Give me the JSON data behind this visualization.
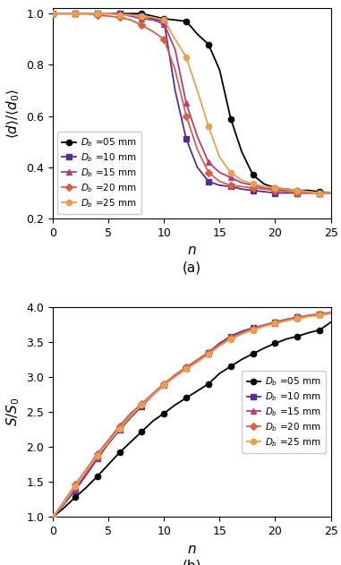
{
  "colors": {
    "05mm": "#000000",
    "10mm": "#5b2d8e",
    "15mm": "#b0407a",
    "20mm": "#d4604a",
    "25mm": "#e8a050"
  },
  "markers": {
    "05mm": "o",
    "10mm": "s",
    "15mm": "^",
    "20mm": "D",
    "25mm": "o"
  },
  "legend_labels": {
    "05mm": "$D_b$ =05 mm",
    "10mm": "$D_b$ =10 mm",
    "15mm": "$D_b$ =15 mm",
    "20mm": "$D_b$ =20 mm",
    "25mm": "$D_b$ =25 mm"
  },
  "plot_a": {
    "n_values": [
      0,
      1,
      2,
      3,
      4,
      5,
      6,
      7,
      8,
      9,
      10,
      11,
      12,
      13,
      14,
      15,
      16,
      17,
      18,
      19,
      20,
      21,
      22,
      23,
      24,
      25
    ],
    "05mm": [
      1.0,
      1.0,
      1.0,
      1.0,
      1.0,
      1.0,
      1.0,
      1.0,
      1.0,
      0.99,
      0.98,
      0.975,
      0.97,
      0.92,
      0.88,
      0.78,
      0.59,
      0.46,
      0.37,
      0.335,
      0.32,
      0.315,
      0.31,
      0.31,
      0.305,
      0.3
    ],
    "10mm": [
      1.0,
      1.0,
      1.0,
      1.0,
      1.0,
      1.0,
      1.0,
      0.995,
      0.99,
      0.98,
      0.97,
      0.7,
      0.51,
      0.4,
      0.345,
      0.33,
      0.325,
      0.315,
      0.31,
      0.305,
      0.3,
      0.3,
      0.3,
      0.3,
      0.3,
      0.3
    ],
    "15mm": [
      1.0,
      1.0,
      1.0,
      1.0,
      1.0,
      1.0,
      1.0,
      0.99,
      0.98,
      0.975,
      0.96,
      0.86,
      0.65,
      0.52,
      0.42,
      0.38,
      0.36,
      0.34,
      0.33,
      0.32,
      0.315,
      0.31,
      0.31,
      0.305,
      0.3,
      0.3
    ],
    "20mm": [
      1.0,
      1.0,
      1.0,
      1.0,
      0.995,
      0.99,
      0.985,
      0.975,
      0.955,
      0.93,
      0.9,
      0.78,
      0.6,
      0.47,
      0.38,
      0.345,
      0.33,
      0.325,
      0.32,
      0.315,
      0.31,
      0.305,
      0.3,
      0.3,
      0.3,
      0.3
    ],
    "25mm": [
      1.0,
      1.0,
      1.0,
      1.0,
      1.0,
      1.0,
      0.995,
      0.995,
      0.99,
      0.985,
      0.975,
      0.9,
      0.83,
      0.7,
      0.56,
      0.44,
      0.38,
      0.35,
      0.335,
      0.325,
      0.32,
      0.315,
      0.31,
      0.305,
      0.3,
      0.3
    ]
  },
  "plot_b": {
    "n_values": [
      0,
      1,
      2,
      3,
      4,
      5,
      6,
      7,
      8,
      9,
      10,
      11,
      12,
      13,
      14,
      15,
      16,
      17,
      18,
      19,
      20,
      21,
      22,
      23,
      24,
      25
    ],
    "05mm": [
      1.0,
      1.13,
      1.28,
      1.42,
      1.58,
      1.75,
      1.92,
      2.07,
      2.22,
      2.37,
      2.48,
      2.6,
      2.7,
      2.8,
      2.9,
      3.05,
      3.15,
      3.25,
      3.33,
      3.41,
      3.48,
      3.54,
      3.58,
      3.63,
      3.67,
      3.78
    ],
    "10mm": [
      1.0,
      1.18,
      1.38,
      1.6,
      1.83,
      2.05,
      2.24,
      2.42,
      2.58,
      2.74,
      2.88,
      3.02,
      3.13,
      3.24,
      3.35,
      3.48,
      3.58,
      3.65,
      3.7,
      3.74,
      3.78,
      3.82,
      3.85,
      3.87,
      3.89,
      3.91
    ],
    "15mm": [
      1.0,
      1.19,
      1.4,
      1.62,
      1.85,
      2.07,
      2.27,
      2.45,
      2.61,
      2.76,
      2.9,
      3.02,
      3.13,
      3.24,
      3.34,
      3.46,
      3.56,
      3.63,
      3.68,
      3.73,
      3.77,
      3.81,
      3.84,
      3.87,
      3.89,
      3.91
    ],
    "20mm": [
      1.0,
      1.22,
      1.46,
      1.68,
      1.9,
      2.1,
      2.3,
      2.48,
      2.62,
      2.76,
      2.9,
      3.03,
      3.14,
      3.24,
      3.34,
      3.46,
      3.56,
      3.63,
      3.69,
      3.74,
      3.78,
      3.82,
      3.85,
      3.88,
      3.9,
      3.92
    ],
    "25mm": [
      1.0,
      1.2,
      1.44,
      1.66,
      1.87,
      2.07,
      2.26,
      2.44,
      2.6,
      2.74,
      2.88,
      3.0,
      3.11,
      3.21,
      3.32,
      3.44,
      3.54,
      3.61,
      3.67,
      3.72,
      3.76,
      3.8,
      3.83,
      3.86,
      3.88,
      3.9
    ]
  },
  "ylim_a": [
    0.2,
    1.02
  ],
  "ylim_b": [
    1.0,
    4.0
  ],
  "yticks_a": [
    0.2,
    0.4,
    0.6,
    0.8,
    1.0
  ],
  "yticks_b": [
    1.0,
    1.5,
    2.0,
    2.5,
    3.0,
    3.5,
    4.0
  ],
  "xlim": [
    0,
    25
  ],
  "xticks": [
    0,
    5,
    10,
    15,
    20,
    25
  ],
  "marker_size": 4.5,
  "linewidth": 1.3,
  "figsize": [
    3.81,
    6.31
  ],
  "dpi": 100
}
